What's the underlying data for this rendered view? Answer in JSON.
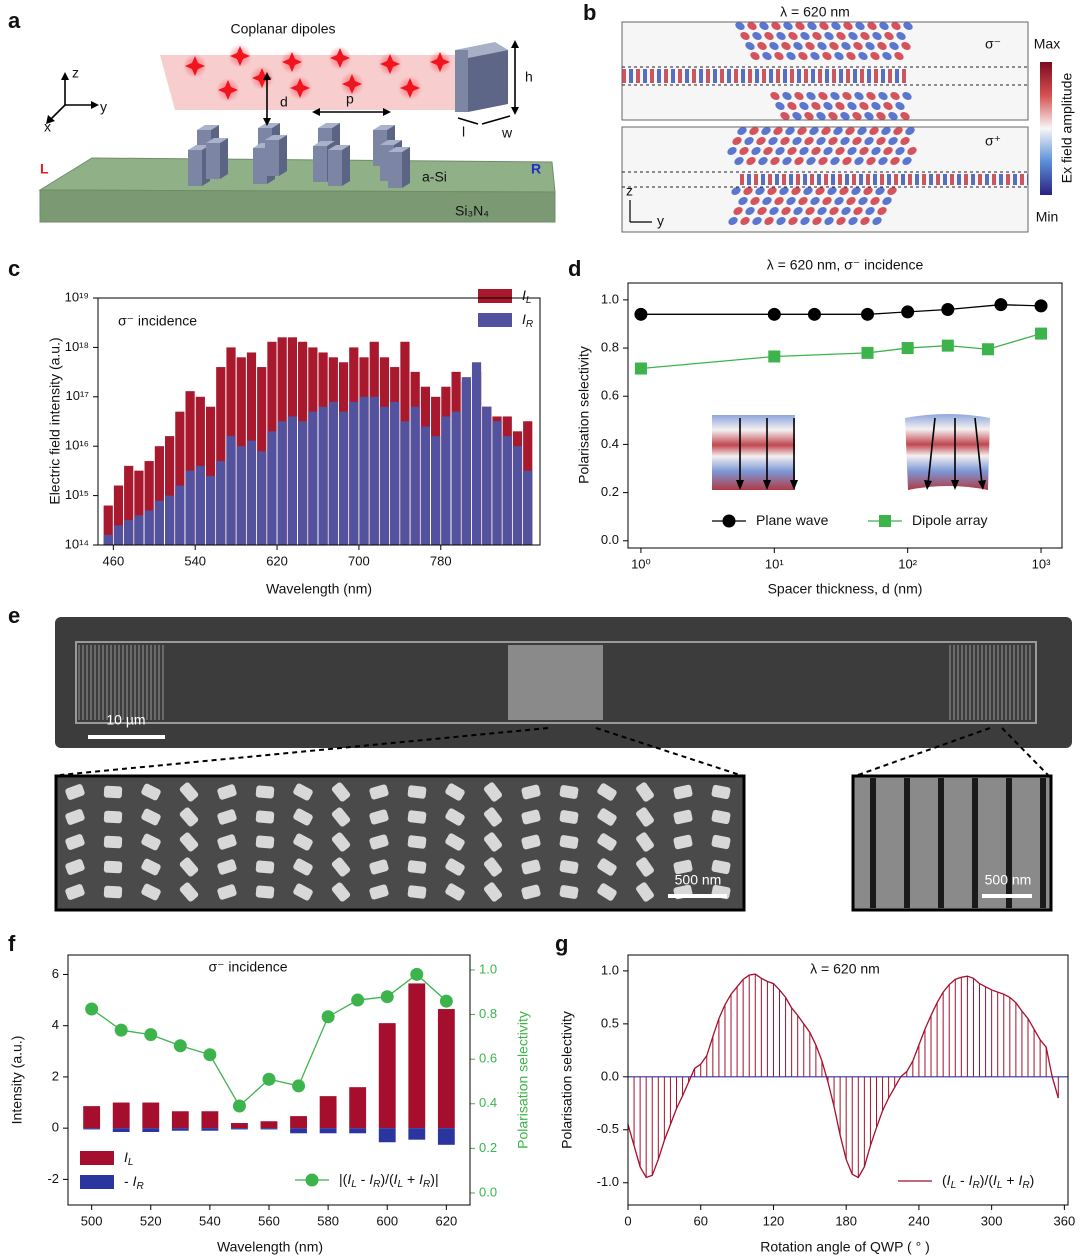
{
  "panel_a": {
    "label": "a",
    "title": "Coplanar dipoles",
    "axes": [
      "z",
      "y",
      "x"
    ],
    "dims": [
      "d",
      "p",
      "h",
      "l",
      "w"
    ],
    "left": "L",
    "right": "R",
    "layer": "a-Si",
    "substrate": "Si₃N₄"
  },
  "panel_b": {
    "label": "b",
    "title": "λ = 620 nm",
    "top_pol": "σ⁻",
    "bottom_pol": "σ⁺",
    "max": "Max",
    "min": "Min",
    "colorbar": "Ex field amplitude",
    "axes": [
      "z",
      "y"
    ]
  },
  "panel_e": {
    "label": "e",
    "scale_main": "10 µm",
    "scale_left": "500 nm",
    "scale_right": "500 nm"
  },
  "chart_data": [
    {
      "type": "bar",
      "panel_label": "c",
      "annotation": "σ⁻ incidence",
      "xlabel": "Wavelength (nm)",
      "ylabel": "Electric field intensity (a.u.)",
      "yscale": "log",
      "legend": "upper right",
      "x": [
        455,
        465,
        475,
        485,
        495,
        505,
        515,
        525,
        535,
        545,
        555,
        565,
        575,
        585,
        595,
        605,
        615,
        625,
        635,
        645,
        655,
        665,
        675,
        685,
        695,
        705,
        715,
        725,
        735,
        745,
        755,
        765,
        775,
        785,
        795,
        805,
        815,
        825,
        835,
        845,
        855,
        865
      ],
      "series": [
        {
          "name": "IL",
          "color": "#a8192e",
          "values": [
            630000000000000.0,
            1600000000000000.0,
            4000000000000000.0,
            3200000000000000.0,
            5000000000000000.0,
            1e+16,
            1.6e+16,
            5e+16,
            1.3e+17,
            1e+17,
            6.3e+16,
            4e+17,
            1e+18,
            6.3e+17,
            7.9e+17,
            4e+17,
            1.3e+18,
            1.6e+18,
            1.6e+18,
            1.3e+18,
            1e+18,
            7.9e+17,
            6.3e+17,
            5e+17,
            1e+18,
            6.3e+17,
            1.3e+18,
            6.3e+17,
            4e+17,
            1.3e+18,
            3.2e+17,
            1.6e+17,
            1e+17,
            1.6e+17,
            3.2e+17,
            2e+17,
            3.2e+17,
            6.3e+16,
            4e+16,
            4e+16,
            2e+16,
            3.2e+16
          ]
        },
        {
          "name": "IR",
          "color": "#52529e",
          "values": [
            160000000000000.0,
            250000000000000.0,
            320000000000000.0,
            400000000000000.0,
            500000000000000.0,
            790000000000000.0,
            1000000000000000.0,
            1600000000000000.0,
            3200000000000000.0,
            4000000000000000.0,
            2500000000000000.0,
            5000000000000000.0,
            1.6e+16,
            1e+16,
            1.3e+16,
            7900000000000000.0,
            2e+16,
            3.2e+16,
            4e+16,
            3.2e+16,
            5e+16,
            6.3e+16,
            7.9e+16,
            5e+16,
            7.9e+16,
            1e+17,
            1e+17,
            6.3e+16,
            7.9e+16,
            3.2e+16,
            6.3e+16,
            2.5e+16,
            1.6e+16,
            4e+16,
            5e+16,
            2.5e+17,
            5e+17,
            6.3e+16,
            3.2e+16,
            1.6e+16,
            1e+16,
            3200000000000000.0
          ]
        }
      ],
      "xlim": [
        445,
        877
      ],
      "xticks": [
        460,
        540,
        620,
        700,
        780
      ],
      "ylim": [
        100000000000000.0,
        1e+19
      ],
      "yticks": [
        {
          "value": 100000000000000.0,
          "label": "10¹⁴"
        },
        {
          "value": 1000000000000000.0,
          "label": "10¹⁵"
        },
        {
          "value": 1e+16,
          "label": "10¹⁶"
        },
        {
          "value": 1e+17,
          "label": "10¹⁷"
        },
        {
          "value": 1e+18,
          "label": "10¹⁸"
        },
        {
          "value": 1e+19,
          "label": "10¹⁹"
        }
      ]
    },
    {
      "type": "line",
      "panel_label": "d",
      "title": "λ = 620 nm, σ⁻ incidence",
      "xlabel": "Spacer thickness, d (nm)",
      "ylabel": "Polarisation selectivity",
      "xscale": "log",
      "legend": "lower center",
      "series": [
        {
          "name": "Plane wave",
          "color": "#000000",
          "marker": "circle",
          "x": [
            1,
            10,
            20,
            50,
            100,
            200,
            500,
            1000
          ],
          "values": [
            0.94,
            0.94,
            0.94,
            0.94,
            0.95,
            0.96,
            0.98,
            0.975
          ]
        },
        {
          "name": "Dipole array",
          "color": "#3cb44b",
          "marker": "square",
          "x": [
            1,
            10,
            50,
            100,
            200,
            400,
            1000
          ],
          "values": [
            0.715,
            0.765,
            0.78,
            0.8,
            0.81,
            0.795,
            0.86
          ]
        }
      ],
      "xlim": [
        0.8,
        1436
      ],
      "xticks": [
        {
          "value": 1,
          "label": "10⁰"
        },
        {
          "value": 10,
          "label": "10¹"
        },
        {
          "value": 100,
          "label": "10²"
        },
        {
          "value": 1000,
          "label": "10³"
        }
      ],
      "ylim": [
        -0.03,
        1.07
      ],
      "yticks": [
        {
          "value": 0,
          "label": "0.0"
        },
        0.2,
        0.4,
        0.6,
        0.8,
        {
          "value": 1,
          "label": "1.0"
        }
      ]
    },
    {
      "type": "bar",
      "panel_label": "f",
      "annotation": "σ⁻ incidence",
      "xlabel": "Wavelength (nm)",
      "ylabel": "Intensity (a.u.)",
      "y2label": "Polarisation selectivity",
      "legend": "lower",
      "x": [
        500,
        510,
        520,
        530,
        540,
        550,
        560,
        570,
        580,
        590,
        600,
        610,
        620
      ],
      "series": [
        {
          "name": "IL",
          "color": "#a50f2d",
          "values": [
            0.86,
            1.0,
            1.0,
            0.66,
            0.66,
            0.2,
            0.27,
            0.47,
            1.25,
            1.6,
            4.1,
            5.65,
            4.65
          ]
        },
        {
          "name": "- IR",
          "color": "#2b35a0",
          "values": [
            -0.05,
            -0.15,
            -0.15,
            -0.1,
            -0.1,
            -0.05,
            -0.05,
            -0.2,
            -0.2,
            -0.2,
            -0.55,
            -0.45,
            -0.65
          ]
        },
        {
          "name": "|(IL - IR)/(IL + IR)|",
          "color": "#3cb44b",
          "type": "line",
          "marker": "circle",
          "axis": "y2",
          "values": [
            0.825,
            0.73,
            0.71,
            0.66,
            0.62,
            0.39,
            0.51,
            0.48,
            0.79,
            0.865,
            0.88,
            0.98,
            0.86
          ]
        }
      ],
      "xlim": [
        492,
        628
      ],
      "xticks": [
        500,
        520,
        540,
        560,
        580,
        600,
        620
      ],
      "ylim": [
        -3.0,
        6.76
      ],
      "yticks": [
        -2,
        0,
        2,
        4,
        6
      ],
      "y2lim": [
        -0.054,
        1.067
      ],
      "y2ticks": [
        {
          "value": 0,
          "label": "0.0"
        },
        0.2,
        0.4,
        0.6,
        0.8,
        {
          "value": 1,
          "label": "1.0"
        }
      ]
    },
    {
      "type": "line",
      "panel_label": "g",
      "title": "λ = 620 nm",
      "xlabel": "Rotation angle of QWP ( ° )",
      "ylabel": "Polarisation selectivity",
      "stems": true,
      "legend": "lower right",
      "x": [
        0,
        5,
        10,
        15,
        20,
        25,
        30,
        35,
        40,
        45,
        50,
        55,
        60,
        65,
        70,
        75,
        80,
        85,
        90,
        95,
        100,
        105,
        110,
        115,
        120,
        125,
        130,
        135,
        140,
        145,
        150,
        155,
        160,
        165,
        170,
        175,
        180,
        185,
        190,
        195,
        200,
        205,
        210,
        215,
        220,
        225,
        230,
        235,
        240,
        245,
        250,
        255,
        260,
        265,
        270,
        275,
        280,
        285,
        290,
        295,
        300,
        305,
        310,
        315,
        320,
        325,
        330,
        335,
        340,
        345,
        350,
        355
      ],
      "series": [
        {
          "name": "(IL - IR)/(IL + IR)",
          "color": "#a50f2d",
          "values": [
            -0.45,
            -0.65,
            -0.85,
            -0.95,
            -0.93,
            -0.78,
            -0.6,
            -0.45,
            -0.3,
            -0.18,
            -0.05,
            0.08,
            0.12,
            0.2,
            0.38,
            0.55,
            0.68,
            0.78,
            0.85,
            0.92,
            0.96,
            0.97,
            0.93,
            0.9,
            0.88,
            0.82,
            0.75,
            0.65,
            0.58,
            0.5,
            0.42,
            0.3,
            0.15,
            -0.05,
            -0.28,
            -0.55,
            -0.78,
            -0.92,
            -0.95,
            -0.85,
            -0.65,
            -0.48,
            -0.32,
            -0.2,
            -0.1,
            0.0,
            0.05,
            0.15,
            0.3,
            0.45,
            0.58,
            0.7,
            0.8,
            0.87,
            0.92,
            0.94,
            0.95,
            0.93,
            0.88,
            0.85,
            0.82,
            0.8,
            0.78,
            0.75,
            0.7,
            0.62,
            0.55,
            0.45,
            0.35,
            0.28,
            0.0,
            -0.2
          ]
        }
      ],
      "xlim": [
        0,
        363
      ],
      "xticks": [
        0,
        60,
        120,
        180,
        240,
        300,
        360
      ],
      "ylim": [
        -1.21,
        1.15
      ],
      "yticks": [
        {
          "value": 1,
          "label": "1.0"
        },
        0.5,
        {
          "value": 0,
          "label": "0.0"
        },
        -0.5,
        {
          "value": -1,
          "label": "-1.0"
        }
      ]
    }
  ]
}
